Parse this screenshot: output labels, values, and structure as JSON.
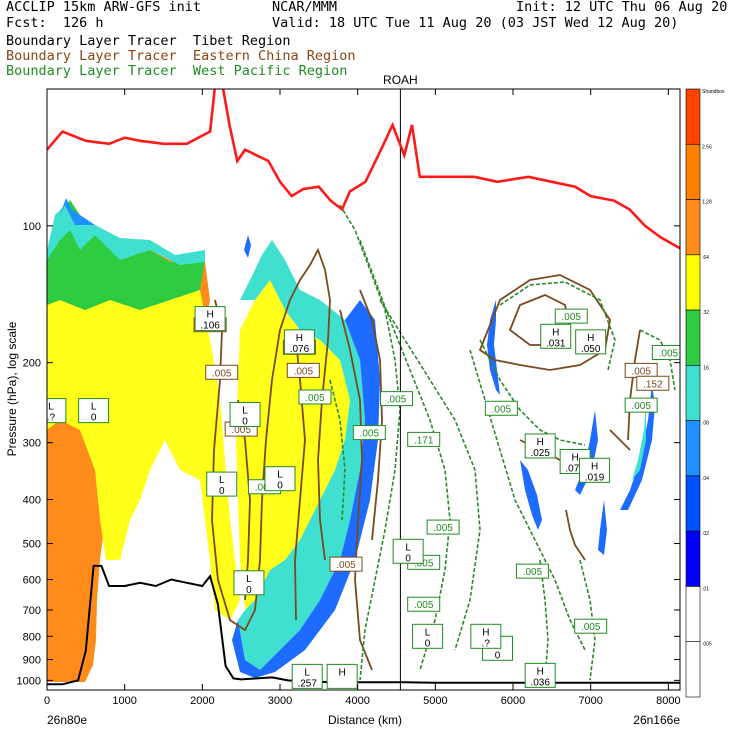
{
  "header": {
    "model": "ACCLIP 15km ARW-GFS init",
    "org": "NCAR/MMM",
    "init": "Init: 12 UTC Thu 06 Aug 20",
    "fcst": "Fcst:  126 h",
    "valid": "Valid: 18 UTC Tue 11 Aug 20 (03 JST Wed 12 Aug 20)"
  },
  "legend": [
    {
      "text": "Boundary Layer Tracer  Tibet Region",
      "color": "#000000"
    },
    {
      "text": "Boundary Layer Tracer  Eastern China Region",
      "color": "#8b4513"
    },
    {
      "text": "Boundary Layer Tracer  West Pacific Region",
      "color": "#228b22"
    }
  ],
  "colors": {
    "tropopause": "#ff1a1a",
    "terrain": "#000000",
    "eastern_china": "#7a4a1e",
    "west_pacific": "#2a8a2a"
  },
  "chart_data": {
    "type": "heatmap",
    "description_free": true,
    "xlabel": "Distance (km)",
    "ylabel": "Pressure (hPa), log scale",
    "y_scale": "log",
    "xlim": [
      0,
      8150
    ],
    "ylim": [
      1050,
      50
    ],
    "x_ticks": [
      0,
      1000,
      2000,
      3000,
      4000,
      5000,
      6000,
      7000,
      8000
    ],
    "y_ticks": [
      100,
      200,
      300,
      400,
      500,
      600,
      700,
      800,
      900,
      1000
    ],
    "x_start_label": "26n80e",
    "x_end_label": "26n166e",
    "marker": {
      "label": "ROAH",
      "x": 4550
    },
    "colorbar": {
      "labels": [
        "Shandbox",
        "2.56",
        "1.28",
        ".64",
        ".32",
        ".16",
        ".08",
        ".04",
        ".02",
        ".01",
        ".005"
      ],
      "colors": [
        "#ff4500",
        "#ff7f00",
        "#ff8c1a",
        "#ffff00",
        "#2ecc40",
        "#40e0d0",
        "#1e90ff",
        "#0050ff",
        "#0000ff",
        "#ffffff",
        "#ffffff"
      ]
    },
    "tropopause": {
      "x": [
        0,
        200,
        500,
        800,
        1000,
        1200,
        1500,
        1800,
        2100,
        2200,
        2350,
        2450,
        2550,
        2700,
        2850,
        3000,
        3150,
        3300,
        3500,
        3650,
        3800,
        3900,
        4100,
        4300,
        4450,
        4600,
        4700,
        4800,
        5000,
        5200,
        5500,
        5800,
        6200,
        6500,
        6800,
        7000,
        7300,
        7500,
        7700,
        7900,
        8150
      ],
      "p": [
        68,
        62,
        65,
        66,
        64,
        65,
        66,
        66,
        62,
        43,
        60,
        72,
        68,
        70,
        72,
        80,
        86,
        83,
        82,
        88,
        92,
        84,
        80,
        68,
        60,
        70,
        60,
        78,
        78,
        78,
        78,
        80,
        78,
        80,
        82,
        86,
        88,
        92,
        100,
        106,
        112
      ]
    },
    "terrain": {
      "x": [
        0,
        200,
        400,
        500,
        600,
        700,
        800,
        1000,
        1200,
        1400,
        1600,
        1800,
        2000,
        2100,
        2200,
        2300,
        2400,
        2500,
        2700,
        2900,
        3100,
        3300,
        3500,
        3700,
        4000,
        4300,
        4600,
        5000,
        5500,
        6000,
        6500,
        7000,
        7500,
        8000,
        8150
      ],
      "p": [
        1020,
        1020,
        1000,
        860,
        560,
        560,
        620,
        620,
        610,
        620,
        600,
        610,
        620,
        590,
        680,
        930,
        990,
        995,
        990,
        985,
        1000,
        1005,
        1008,
        1010,
        1010,
        1010,
        1010,
        1012,
        1012,
        1012,
        1012,
        1012,
        1012,
        1012,
        1012
      ]
    },
    "labels": [
      {
        "text": ".106",
        "x": 2100,
        "p": 165,
        "color": "#7a4a1e"
      },
      {
        "text": ".005",
        "x": 2250,
        "p": 210,
        "color": "#7a4a1e"
      },
      {
        "text": ".005",
        "x": 2500,
        "p": 280,
        "color": "#7a4a1e"
      },
      {
        "text": ".005",
        "x": 2800,
        "p": 375,
        "color": "#228b22"
      },
      {
        "text": ".076",
        "x": 3250,
        "p": 185,
        "color": "#7a4a1e"
      },
      {
        "text": ".005",
        "x": 3300,
        "p": 208,
        "color": "#7a4a1e"
      },
      {
        "text": ".005",
        "x": 3450,
        "p": 238,
        "color": "#228b22"
      },
      {
        "text": ".005",
        "x": 4500,
        "p": 240,
        "color": "#228b22"
      },
      {
        "text": ".005",
        "x": 4150,
        "p": 285,
        "color": "#228b22"
      },
      {
        "text": ".171",
        "x": 4850,
        "p": 295,
        "color": "#228b22"
      },
      {
        "text": ".005",
        "x": 5850,
        "p": 252,
        "color": "#228b22"
      },
      {
        "text": ".005",
        "x": 5100,
        "p": 460,
        "color": "#228b22"
      },
      {
        "text": ".005",
        "x": 4850,
        "p": 550,
        "color": "#228b22"
      },
      {
        "text": ".005",
        "x": 4850,
        "p": 680,
        "color": "#228b22"
      },
      {
        "text": ".005",
        "x": 6250,
        "p": 575,
        "color": "#228b22"
      },
      {
        "text": ".005",
        "x": 7000,
        "p": 760,
        "color": "#228b22"
      },
      {
        "text": ".005",
        "x": 6750,
        "p": 158,
        "color": "#228b22"
      },
      {
        "text": ".005",
        "x": 8000,
        "p": 190,
        "color": "#228b22"
      },
      {
        "text": ".005",
        "x": 7650,
        "p": 208,
        "color": "#7a4a1e"
      },
      {
        "text": ".152",
        "x": 7800,
        "p": 222,
        "color": "#7a4a1e"
      },
      {
        "text": ".005",
        "x": 7650,
        "p": 248,
        "color": "#228b22"
      },
      {
        "text": ".005",
        "x": 3850,
        "p": 555,
        "color": "#7a4a1e"
      }
    ],
    "hl_labels": [
      {
        "letter": "H",
        "value": ".106",
        "x": 2100,
        "p": 160
      },
      {
        "letter": "H",
        "value": ".076",
        "x": 3250,
        "p": 180
      },
      {
        "letter": "L",
        "value": ".?",
        "x": 50,
        "p": 255
      },
      {
        "letter": "L",
        "value": "0",
        "x": 600,
        "p": 255
      },
      {
        "letter": "L",
        "value": "0",
        "x": 2550,
        "p": 260
      },
      {
        "letter": "L",
        "value": "0",
        "x": 2250,
        "p": 370
      },
      {
        "letter": "L",
        "value": "0",
        "x": 3000,
        "p": 360
      },
      {
        "letter": "L",
        "value": "0",
        "x": 4650,
        "p": 520
      },
      {
        "letter": "L",
        "value": "0",
        "x": 4900,
        "p": 800
      },
      {
        "letter": "L",
        "value": "0",
        "x": 5800,
        "p": 850
      },
      {
        "letter": "L",
        "value": "0",
        "x": 2600,
        "p": 610
      },
      {
        "letter": "H",
        "value": ".031",
        "x": 6550,
        "p": 175
      },
      {
        "letter": "H",
        "value": ".050",
        "x": 7000,
        "p": 180
      },
      {
        "letter": "H",
        "value": ".025",
        "x": 6350,
        "p": 305
      },
      {
        "letter": "H",
        "value": ".073",
        "x": 6800,
        "p": 330
      },
      {
        "letter": "H",
        "value": ".019",
        "x": 7050,
        "p": 345
      },
      {
        "letter": "H",
        "value": ".036",
        "x": 6350,
        "p": 975
      },
      {
        "letter": "L",
        "value": ".257",
        "x": 3350,
        "p": 980
      },
      {
        "letter": "H",
        "value": "",
        "x": 3800,
        "p": 980
      },
      {
        "letter": "H",
        "value": ".?",
        "x": 5650,
        "p": 800
      }
    ]
  }
}
